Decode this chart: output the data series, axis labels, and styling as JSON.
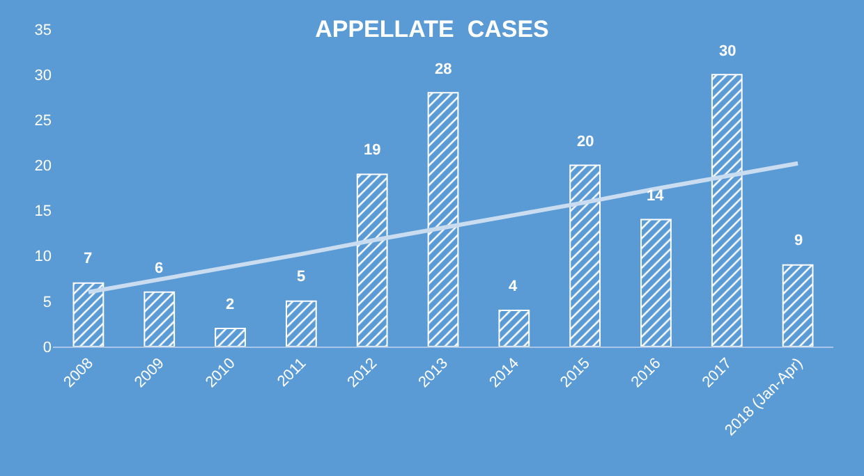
{
  "chart_data": {
    "type": "bar",
    "title": "APPELLATE  CASES",
    "categories": [
      "2008",
      "2009",
      "2010",
      "2011",
      "2012",
      "2013",
      "2014",
      "2015",
      "2016",
      "2017",
      "2018 (Jan-Apr)"
    ],
    "series": [
      {
        "color": "#ffffff",
        "values": [
          7,
          6,
          2,
          5,
          19,
          28,
          4,
          20,
          14,
          30,
          9
        ],
        "value_labels": [
          "7",
          "6",
          "2",
          "5",
          "19",
          "28",
          "4",
          "20",
          "14",
          "30",
          "9"
        ]
      },
      {
        "type": "line",
        "color": "#c9dcf0",
        "values": [
          6.0,
          7.4,
          8.8,
          10.2,
          11.7,
          13.1,
          14.5,
          15.9,
          17.4,
          18.8,
          20.2
        ]
      }
    ],
    "ylim": [
      0,
      35
    ],
    "yticks": [
      0,
      5,
      10,
      15,
      20,
      25,
      30,
      35
    ],
    "grid": false
  }
}
